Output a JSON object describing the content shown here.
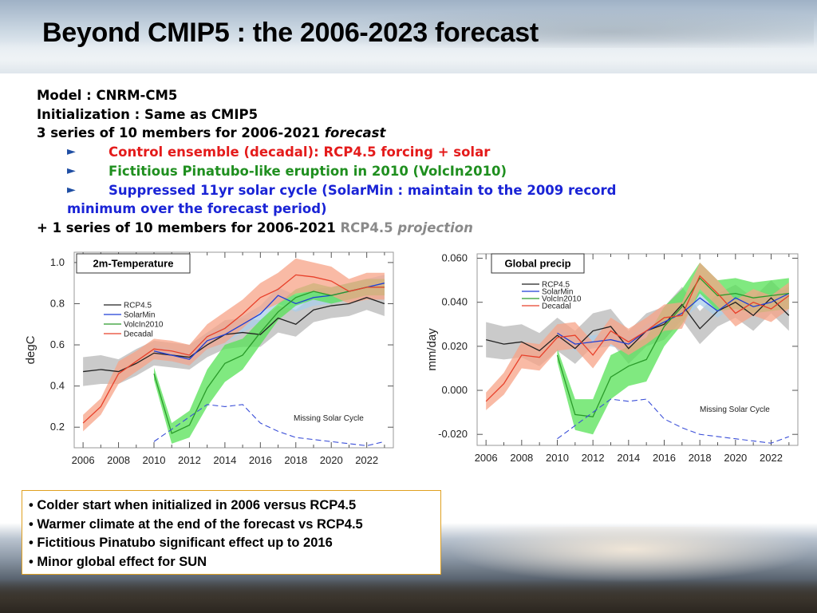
{
  "slide": {
    "title": "Beyond CMIP5 : the 2006-2023 forecast"
  },
  "description": {
    "model": "Model : CNRM-CM5",
    "init": "Initialization : Same as CMIP5",
    "series_a": "3 series of 10 members for 2006-2021 ",
    "series_a_em": "forecast",
    "bullet_arrow": "►",
    "bullets": [
      {
        "text": "Control ensemble (decadal): RCP4.5 forcing + solar",
        "color": "#e41b1b"
      },
      {
        "text": "Fictitious Pinatubo-like eruption in 2010 (VolcIn2010)",
        "color": "#1f8f1f"
      },
      {
        "text": "Suppressed 11yr solar cycle (SolarMin : maintain to the 2009 record",
        "color": "#1a24d6"
      }
    ],
    "bullet3_cont": "minimum over the forecast period)",
    "series_b": "+ 1 series of 10 members for 2006-2021 ",
    "series_b_rcp": "RCP4.5",
    "series_b_em": "projection"
  },
  "chart_data": [
    {
      "type": "line",
      "title": "2m-Temperature",
      "ylabel": "degC",
      "xlim": [
        2005.5,
        2023.5
      ],
      "ylim": [
        0.1,
        1.05
      ],
      "xticks": [
        2006,
        2008,
        2010,
        2012,
        2014,
        2016,
        2018,
        2020,
        2022
      ],
      "yticks": [
        0.2,
        0.4,
        0.6,
        0.8,
        1.0
      ],
      "ytick_labels": [
        "0.2",
        "0.4",
        "0.6",
        "0.8",
        "1.0"
      ],
      "legend_loc": "upper-left",
      "series": [
        {
          "name": "RCP4.5",
          "color": "#222222",
          "band_color": "#b8b8b8",
          "x": [
            2006,
            2007,
            2008,
            2009,
            2010,
            2011,
            2012,
            2013,
            2014,
            2015,
            2016,
            2017,
            2018,
            2019,
            2020,
            2021,
            2022,
            2023
          ],
          "values": [
            0.47,
            0.48,
            0.47,
            0.51,
            0.56,
            0.55,
            0.54,
            0.6,
            0.65,
            0.66,
            0.65,
            0.73,
            0.7,
            0.77,
            0.79,
            0.8,
            0.83,
            0.8
          ],
          "lower": [
            0.4,
            0.41,
            0.41,
            0.45,
            0.5,
            0.49,
            0.48,
            0.54,
            0.58,
            0.59,
            0.59,
            0.66,
            0.64,
            0.71,
            0.73,
            0.74,
            0.77,
            0.74
          ],
          "upper": [
            0.54,
            0.55,
            0.53,
            0.58,
            0.62,
            0.61,
            0.6,
            0.66,
            0.72,
            0.73,
            0.72,
            0.79,
            0.77,
            0.84,
            0.85,
            0.86,
            0.89,
            0.87
          ]
        },
        {
          "name": "SolarMin",
          "color": "#1f3fd6",
          "band_color": "#a9cdea",
          "x": [
            2010,
            2011,
            2012,
            2013,
            2014,
            2015,
            2016,
            2017,
            2018,
            2019,
            2020,
            2021,
            2022,
            2023
          ],
          "values": [
            0.57,
            0.55,
            0.53,
            0.62,
            0.65,
            0.7,
            0.75,
            0.84,
            0.8,
            0.83,
            0.84,
            0.86,
            0.88,
            0.9
          ],
          "lower": [
            0.54,
            0.52,
            0.5,
            0.58,
            0.61,
            0.66,
            0.71,
            0.8,
            0.76,
            0.79,
            0.8,
            0.82,
            0.84,
            0.86
          ],
          "upper": [
            0.6,
            0.58,
            0.56,
            0.66,
            0.69,
            0.74,
            0.79,
            0.88,
            0.84,
            0.87,
            0.88,
            0.9,
            0.92,
            0.94
          ]
        },
        {
          "name": "VolcIn2010",
          "color": "#2a9b2a",
          "band_color": "#55e255",
          "x": [
            2010,
            2011,
            2012,
            2013,
            2014,
            2015,
            2016,
            2017,
            2018,
            2019,
            2020,
            2021,
            2022,
            2023
          ],
          "values": [
            0.46,
            0.17,
            0.21,
            0.39,
            0.51,
            0.55,
            0.66,
            0.76,
            0.83,
            0.86,
            0.84,
            0.86,
            0.88,
            0.88
          ],
          "lower": [
            0.43,
            0.12,
            0.15,
            0.3,
            0.42,
            0.48,
            0.6,
            0.72,
            0.79,
            0.82,
            0.8,
            0.82,
            0.84,
            0.84
          ],
          "upper": [
            0.49,
            0.22,
            0.28,
            0.48,
            0.6,
            0.63,
            0.72,
            0.8,
            0.87,
            0.9,
            0.88,
            0.9,
            0.92,
            0.92
          ]
        },
        {
          "name": "Decadal",
          "color": "#e8402a",
          "band_color": "#f7a387",
          "x": [
            2006,
            2007,
            2008,
            2009,
            2010,
            2011,
            2012,
            2013,
            2014,
            2015,
            2016,
            2017,
            2018,
            2019,
            2020,
            2021,
            2022,
            2023
          ],
          "values": [
            0.22,
            0.3,
            0.46,
            0.52,
            0.58,
            0.57,
            0.55,
            0.64,
            0.68,
            0.75,
            0.83,
            0.87,
            0.94,
            0.93,
            0.91,
            0.86,
            0.88,
            0.88
          ],
          "lower": [
            0.18,
            0.26,
            0.41,
            0.47,
            0.53,
            0.52,
            0.5,
            0.58,
            0.61,
            0.68,
            0.76,
            0.8,
            0.85,
            0.86,
            0.84,
            0.8,
            0.82,
            0.82
          ],
          "upper": [
            0.26,
            0.34,
            0.52,
            0.57,
            0.63,
            0.62,
            0.6,
            0.7,
            0.76,
            0.82,
            0.9,
            0.95,
            1.02,
            1.0,
            0.98,
            0.92,
            0.95,
            0.95
          ]
        }
      ],
      "solar_curve": {
        "label": "Missing Solar Cycle",
        "color": "#3b4fd8",
        "x": [
          2010,
          2011,
          2012,
          2013,
          2014,
          2015,
          2016,
          2017,
          2018,
          2019,
          2020,
          2021,
          2022,
          2023
        ],
        "values": [
          0.13,
          0.19,
          0.25,
          0.31,
          0.3,
          0.31,
          0.22,
          0.18,
          0.15,
          0.14,
          0.13,
          0.12,
          0.11,
          0.13
        ]
      }
    },
    {
      "type": "line",
      "title": "Global precip",
      "ylabel": "mm/day",
      "xlim": [
        2005.5,
        2023.5
      ],
      "ylim": [
        -0.025,
        0.062
      ],
      "xticks": [
        2006,
        2008,
        2010,
        2012,
        2014,
        2016,
        2018,
        2020,
        2022
      ],
      "yticks": [
        -0.02,
        0.0,
        0.02,
        0.04,
        0.06
      ],
      "ytick_labels": [
        "-0.020",
        "0.000",
        "0.020",
        "0.040",
        "0.060"
      ],
      "legend_loc": "upper-left",
      "series": [
        {
          "name": "RCP4.5",
          "color": "#222222",
          "band_color": "#b8b8b8",
          "x": [
            2006,
            2007,
            2008,
            2009,
            2010,
            2011,
            2012,
            2013,
            2014,
            2015,
            2016,
            2017,
            2018,
            2019,
            2020,
            2021,
            2022,
            2023
          ],
          "values": [
            0.023,
            0.021,
            0.022,
            0.018,
            0.025,
            0.019,
            0.027,
            0.029,
            0.019,
            0.027,
            0.03,
            0.039,
            0.028,
            0.036,
            0.04,
            0.034,
            0.042,
            0.034
          ],
          "lower": [
            0.015,
            0.014,
            0.015,
            0.011,
            0.018,
            0.012,
            0.02,
            0.022,
            0.012,
            0.02,
            0.023,
            0.032,
            0.021,
            0.029,
            0.033,
            0.027,
            0.035,
            0.027
          ],
          "upper": [
            0.031,
            0.029,
            0.03,
            0.026,
            0.033,
            0.027,
            0.035,
            0.037,
            0.027,
            0.035,
            0.038,
            0.047,
            0.036,
            0.044,
            0.048,
            0.042,
            0.05,
            0.042
          ]
        },
        {
          "name": "SolarMin",
          "color": "#1f3fd6",
          "band_color": "#a9cdea",
          "x": [
            2010,
            2011,
            2012,
            2013,
            2014,
            2015,
            2016,
            2017,
            2018,
            2019,
            2020,
            2021,
            2022,
            2023
          ],
          "values": [
            0.026,
            0.021,
            0.022,
            0.023,
            0.021,
            0.027,
            0.031,
            0.035,
            0.042,
            0.036,
            0.042,
            0.038,
            0.04,
            0.044
          ],
          "lower": [
            0.023,
            0.018,
            0.019,
            0.02,
            0.018,
            0.024,
            0.028,
            0.032,
            0.039,
            0.033,
            0.039,
            0.035,
            0.037,
            0.041
          ],
          "upper": [
            0.029,
            0.024,
            0.025,
            0.026,
            0.024,
            0.03,
            0.034,
            0.038,
            0.045,
            0.039,
            0.045,
            0.041,
            0.043,
            0.047
          ]
        },
        {
          "name": "VolcIn2010",
          "color": "#2a9b2a",
          "band_color": "#55e255",
          "x": [
            2010,
            2011,
            2012,
            2013,
            2014,
            2015,
            2016,
            2017,
            2018,
            2019,
            2020,
            2021,
            2022,
            2023
          ],
          "values": [
            0.016,
            -0.011,
            -0.012,
            0.006,
            0.011,
            0.014,
            0.029,
            0.038,
            0.051,
            0.043,
            0.044,
            0.042,
            0.043,
            0.044
          ],
          "lower": [
            0.013,
            -0.018,
            -0.02,
            -0.004,
            0.002,
            0.004,
            0.02,
            0.03,
            0.044,
            0.036,
            0.037,
            0.035,
            0.036,
            0.037
          ],
          "upper": [
            0.019,
            -0.004,
            -0.004,
            0.016,
            0.02,
            0.024,
            0.038,
            0.046,
            0.058,
            0.05,
            0.051,
            0.049,
            0.05,
            0.051
          ]
        },
        {
          "name": "Decadal",
          "color": "#e8402a",
          "band_color": "#f7a387",
          "x": [
            2006,
            2007,
            2008,
            2009,
            2010,
            2011,
            2012,
            2013,
            2014,
            2015,
            2016,
            2017,
            2018,
            2019,
            2020,
            2021,
            2022,
            2023
          ],
          "values": [
            -0.005,
            0.003,
            0.016,
            0.015,
            0.024,
            0.025,
            0.016,
            0.027,
            0.022,
            0.027,
            0.033,
            0.034,
            0.052,
            0.044,
            0.035,
            0.04,
            0.037,
            0.043
          ],
          "lower": [
            -0.009,
            -0.002,
            0.01,
            0.009,
            0.018,
            0.019,
            0.01,
            0.021,
            0.016,
            0.021,
            0.027,
            0.028,
            0.046,
            0.038,
            0.029,
            0.034,
            0.031,
            0.037
          ],
          "upper": [
            -0.001,
            0.008,
            0.022,
            0.021,
            0.03,
            0.031,
            0.022,
            0.033,
            0.028,
            0.033,
            0.039,
            0.04,
            0.058,
            0.05,
            0.041,
            0.046,
            0.043,
            0.049
          ]
        }
      ],
      "solar_curve": {
        "label": "Missing Solar Cycle",
        "color": "#3b4fd8",
        "x": [
          2010,
          2011,
          2012,
          2013,
          2014,
          2015,
          2016,
          2017,
          2018,
          2019,
          2020,
          2021,
          2022,
          2023
        ],
        "values": [
          -0.022,
          -0.016,
          -0.01,
          -0.004,
          -0.005,
          -0.004,
          -0.013,
          -0.017,
          -0.02,
          -0.021,
          -0.022,
          -0.023,
          -0.024,
          -0.021
        ]
      }
    }
  ],
  "summary": {
    "bullet_char": "•",
    "items": [
      "Colder start when initialized in 2006 versus RCP4.5",
      "Warmer climate at the end of the forecast vs RCP4.5",
      "Fictitious Pinatubo significant effect up to 2016",
      "Minor global effect for SUN"
    ]
  }
}
